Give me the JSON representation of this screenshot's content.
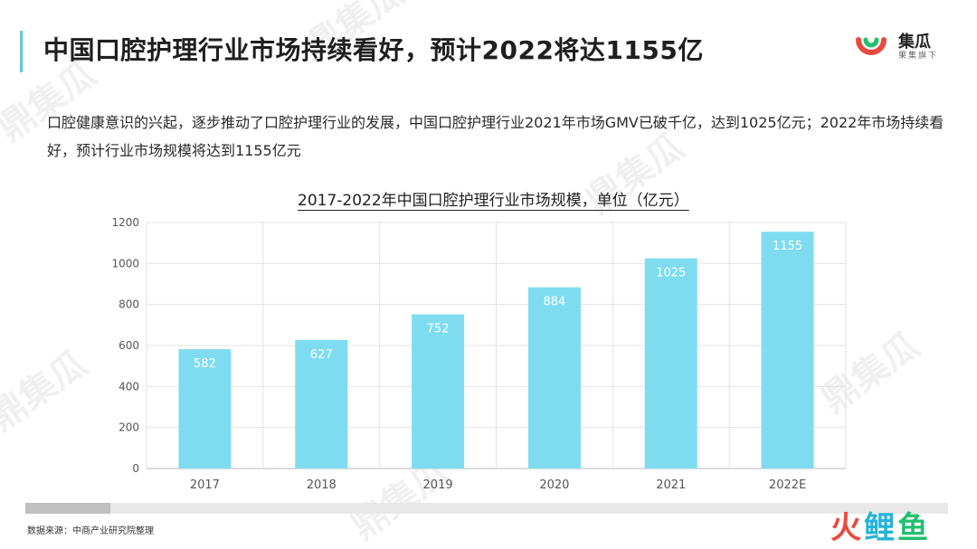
{
  "header": {
    "title": "中国口腔护理行业市场持续看好，预计2022将达1155亿"
  },
  "brand": {
    "name": "集瓜",
    "tagline": "果集旗下",
    "colors": {
      "mark_outer": "#e94a3f",
      "mark_inner": "#20c070"
    }
  },
  "description": "口腔健康意识的兴起，逐步推动了口腔护理行业的发展，中国口腔护理行业2021年市场GMV已破千亿，达到1025亿元；2022年市场持续看好，预计行业市场规模将达到1155亿元",
  "chart_data": {
    "type": "bar",
    "title": "2017-2022年中国口腔护理行业市场规模，单位（亿元）",
    "categories": [
      "2017",
      "2018",
      "2019",
      "2020",
      "2021",
      "2022E"
    ],
    "values": [
      582,
      627,
      752,
      884,
      1025,
      1155
    ],
    "ylim": [
      0,
      1200
    ],
    "yticks": [
      0,
      200,
      400,
      600,
      800,
      1000,
      1200
    ],
    "grid": true,
    "bar_color": "#7fdcf0",
    "data_labels": true
  },
  "footer": {
    "source": "数据来源：中商产业研究院整理"
  },
  "watermark_logo": {
    "parts": [
      "火",
      "鲤",
      "鱼"
    ],
    "colors": [
      "#e94a3f",
      "#27b3d6",
      "#20c070"
    ]
  },
  "watermark_text": "鼎集瓜"
}
